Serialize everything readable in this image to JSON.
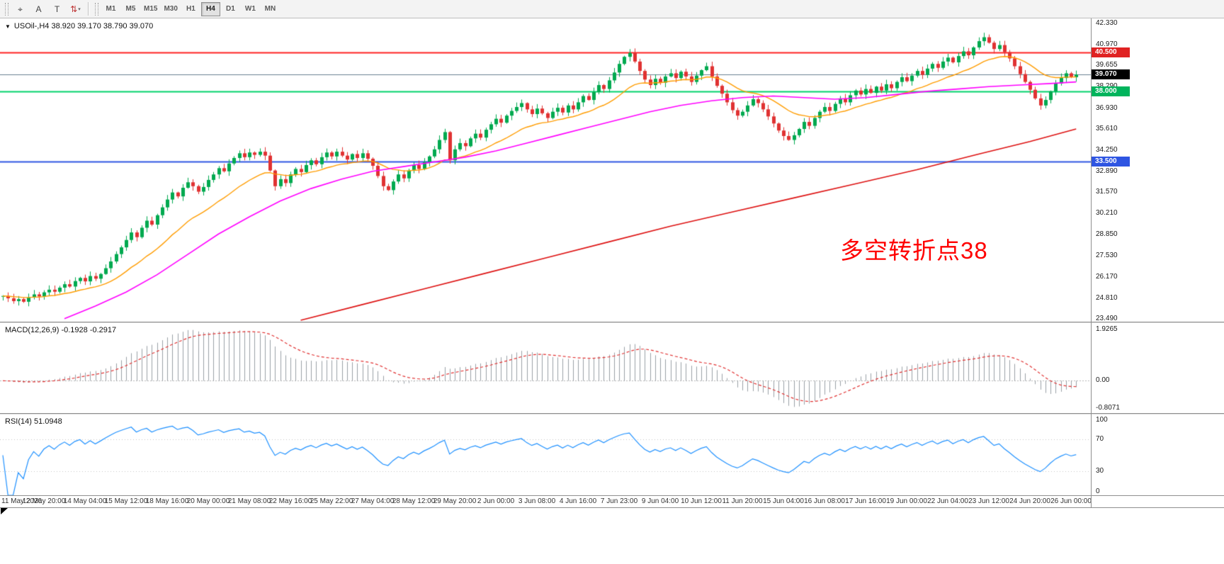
{
  "toolbar": {
    "tools": [
      {
        "name": "crosshair-tool",
        "glyph": "⌖"
      },
      {
        "name": "text-tool",
        "glyph": "A"
      },
      {
        "name": "text-label-tool",
        "glyph": "T"
      },
      {
        "name": "arrows-tool",
        "glyph": "⇅",
        "dropdown": "▾"
      }
    ],
    "timeframes": [
      {
        "label": "M1",
        "active": false
      },
      {
        "label": "M5",
        "active": false
      },
      {
        "label": "M15",
        "active": false
      },
      {
        "label": "M30",
        "active": false
      },
      {
        "label": "H1",
        "active": false
      },
      {
        "label": "H4",
        "active": true
      },
      {
        "label": "D1",
        "active": false
      },
      {
        "label": "W1",
        "active": false
      },
      {
        "label": "MN",
        "active": false
      }
    ]
  },
  "chart": {
    "title": "USOil-,H4 38.920 39.170 38.790 39.070",
    "dropdown_glyph": "▼",
    "annotation": {
      "text": "多空转折点38",
      "color": "#ff0000"
    },
    "scale": {
      "pmin": 23.31,
      "pmax": 42.65
    },
    "price_axis_labels": [
      "42.330",
      "40.970",
      "39.655",
      "38.290",
      "36.930",
      "35.610",
      "34.250",
      "32.890",
      "31.570",
      "30.210",
      "28.850",
      "27.530",
      "26.170",
      "24.810",
      "23.490"
    ],
    "levels": [
      {
        "name": "resistance-line",
        "value": 40.5,
        "label": "40.500",
        "line_color": "#ff2222",
        "badge_bg": "#e02222",
        "width": 2
      },
      {
        "name": "last-price-line",
        "value": 39.07,
        "label": "39.070",
        "line_color": "#6a7f90",
        "badge_bg": "#000000",
        "width": 1
      },
      {
        "name": "support-green-line",
        "value": 38.0,
        "label": "38.000",
        "line_color": "#00d26a",
        "badge_bg": "#00b45c",
        "width": 2
      },
      {
        "name": "support-blue-line",
        "value": 33.5,
        "label": "33.500",
        "line_color": "#2e55e2",
        "badge_bg": "#2e55e2",
        "width": 2
      }
    ],
    "candles": {
      "first_open": 24.9,
      "up_color": "#00a94f",
      "down_color": "#e03232",
      "closes": [
        24.95,
        24.8,
        24.62,
        24.75,
        24.58,
        24.85,
        25.05,
        24.92,
        25.18,
        25.35,
        25.22,
        25.48,
        25.7,
        25.55,
        25.9,
        26.1,
        25.88,
        26.22,
        26.05,
        26.35,
        26.72,
        27.15,
        27.62,
        28.05,
        28.52,
        29.0,
        28.7,
        29.3,
        29.75,
        29.5,
        30.1,
        30.6,
        31.1,
        31.55,
        31.3,
        31.85,
        32.2,
        31.95,
        31.6,
        31.9,
        32.35,
        32.7,
        33.1,
        32.9,
        33.4,
        33.75,
        34.05,
        33.8,
        34.1,
        33.95,
        34.15,
        33.9,
        32.95,
        31.95,
        32.4,
        32.15,
        32.7,
        33.05,
        32.85,
        33.3,
        33.6,
        33.35,
        33.8,
        34.1,
        33.85,
        34.15,
        33.9,
        33.65,
        34.0,
        33.75,
        34.05,
        33.7,
        33.25,
        32.6,
        31.95,
        31.7,
        32.25,
        32.7,
        32.45,
        32.95,
        33.3,
        33.05,
        33.5,
        33.85,
        34.3,
        34.9,
        35.4,
        33.6,
        34.3,
        34.7,
        34.5,
        35.0,
        35.3,
        35.05,
        35.55,
        35.9,
        36.25,
        36.0,
        36.45,
        36.75,
        37.0,
        37.25,
        36.85,
        36.55,
        36.9,
        36.6,
        36.3,
        36.7,
        36.95,
        36.65,
        37.1,
        36.85,
        37.3,
        37.7,
        37.45,
        37.95,
        38.4,
        38.15,
        38.7,
        39.2,
        39.75,
        40.2,
        40.45,
        39.9,
        39.3,
        38.75,
        38.4,
        38.8,
        38.55,
        38.95,
        39.15,
        38.85,
        39.25,
        38.95,
        38.6,
        39.0,
        39.35,
        39.6,
        38.95,
        38.35,
        37.85,
        37.3,
        36.8,
        36.45,
        36.7,
        37.1,
        37.5,
        37.25,
        36.85,
        36.4,
        35.95,
        35.5,
        35.15,
        34.9,
        35.2,
        35.6,
        36.05,
        35.8,
        36.3,
        36.7,
        37.0,
        36.75,
        37.2,
        37.55,
        37.3,
        37.75,
        38.05,
        37.8,
        38.15,
        37.9,
        38.3,
        38.05,
        38.45,
        38.2,
        38.6,
        38.9,
        38.65,
        39.0,
        39.3,
        39.05,
        39.45,
        39.75,
        39.5,
        39.9,
        40.15,
        39.85,
        40.25,
        40.55,
        40.3,
        40.8,
        41.2,
        41.45,
        41.1,
        40.7,
        40.95,
        40.5,
        40.1,
        39.6,
        39.1,
        38.6,
        38.1,
        37.55,
        37.1,
        37.45,
        38.0,
        38.5,
        38.85,
        39.15,
        38.9,
        39.07
      ]
    },
    "moving_averages": {
      "fast": {
        "type": "ema",
        "period": 18,
        "color": "#ff9c00"
      },
      "mid": {
        "color": "#ff00ff",
        "waypoints": [
          [
            12,
            23.5
          ],
          [
            18,
            24.3
          ],
          [
            24,
            25.2
          ],
          [
            30,
            26.3
          ],
          [
            36,
            27.6
          ],
          [
            42,
            28.9
          ],
          [
            48,
            30.0
          ],
          [
            54,
            31.0
          ],
          [
            60,
            31.8
          ],
          [
            66,
            32.4
          ],
          [
            72,
            32.9
          ],
          [
            78,
            33.2
          ],
          [
            84,
            33.5
          ],
          [
            90,
            33.8
          ],
          [
            96,
            34.2
          ],
          [
            102,
            34.7
          ],
          [
            108,
            35.2
          ],
          [
            114,
            35.7
          ],
          [
            120,
            36.2
          ],
          [
            126,
            36.7
          ],
          [
            132,
            37.1
          ],
          [
            138,
            37.4
          ],
          [
            144,
            37.6
          ],
          [
            150,
            37.7
          ],
          [
            156,
            37.6
          ],
          [
            162,
            37.5
          ],
          [
            168,
            37.6
          ],
          [
            174,
            37.8
          ],
          [
            180,
            38.0
          ],
          [
            186,
            38.15
          ],
          [
            192,
            38.3
          ],
          [
            198,
            38.4
          ],
          [
            204,
            38.5
          ],
          [
            209,
            38.6
          ]
        ]
      },
      "slow": {
        "color": "#dd1111",
        "waypoints": [
          [
            58,
            23.4
          ],
          [
            70,
            24.4
          ],
          [
            82,
            25.4
          ],
          [
            94,
            26.4
          ],
          [
            106,
            27.4
          ],
          [
            118,
            28.4
          ],
          [
            130,
            29.4
          ],
          [
            142,
            30.3
          ],
          [
            154,
            31.2
          ],
          [
            166,
            32.1
          ],
          [
            178,
            33.0
          ],
          [
            190,
            34.0
          ],
          [
            200,
            34.8
          ],
          [
            209,
            35.6
          ]
        ]
      }
    }
  },
  "macd": {
    "title": "MACD(12,26,9) -0.1928 -0.2917",
    "params": {
      "fast": 12,
      "slow": 26,
      "signal": 9
    },
    "axis_labels": {
      "top": "1.9265",
      "zero": "0.00",
      "bottom": "-0.8071"
    },
    "histogram_color": "#9aa0a6",
    "signal_color": "#e03030"
  },
  "rsi": {
    "title": "RSI(14) 51.0948",
    "period": 14,
    "line_color": "#1e90ff",
    "levels": [
      70,
      30
    ],
    "axis_labels": [
      "100",
      "70",
      "30",
      "0"
    ]
  },
  "time_axis": {
    "labels": [
      {
        "bar": 0,
        "text": "11 May 2020"
      },
      {
        "bar": 8,
        "text": "12 May 20:00"
      },
      {
        "bar": 16,
        "text": "14 May 04:00"
      },
      {
        "bar": 24,
        "text": "15 May 12:00"
      },
      {
        "bar": 32,
        "text": "18 May 16:00"
      },
      {
        "bar": 40,
        "text": "20 May 00:00"
      },
      {
        "bar": 48,
        "text": "21 May 08:00"
      },
      {
        "bar": 56,
        "text": "22 May 16:00"
      },
      {
        "bar": 64,
        "text": "25 May 22:00"
      },
      {
        "bar": 72,
        "text": "27 May 04:00"
      },
      {
        "bar": 80,
        "text": "28 May 12:00"
      },
      {
        "bar": 88,
        "text": "29 May 20:00"
      },
      {
        "bar": 96,
        "text": "2 Jun 00:00"
      },
      {
        "bar": 104,
        "text": "3 Jun 08:00"
      },
      {
        "bar": 112,
        "text": "4 Jun 16:00"
      },
      {
        "bar": 120,
        "text": "7 Jun 23:00"
      },
      {
        "bar": 128,
        "text": "9 Jun 04:00"
      },
      {
        "bar": 136,
        "text": "10 Jun 12:00"
      },
      {
        "bar": 144,
        "text": "11 Jun 20:00"
      },
      {
        "bar": 152,
        "text": "15 Jun 04:00"
      },
      {
        "bar": 160,
        "text": "16 Jun 08:00"
      },
      {
        "bar": 168,
        "text": "17 Jun 16:00"
      },
      {
        "bar": 176,
        "text": "19 Jun 00:00"
      },
      {
        "bar": 184,
        "text": "22 Jun 04:00"
      },
      {
        "bar": 192,
        "text": "23 Jun 12:00"
      },
      {
        "bar": 200,
        "text": "24 Jun 20:00"
      },
      {
        "bar": 208,
        "text": "26 Jun 00:00"
      }
    ]
  }
}
